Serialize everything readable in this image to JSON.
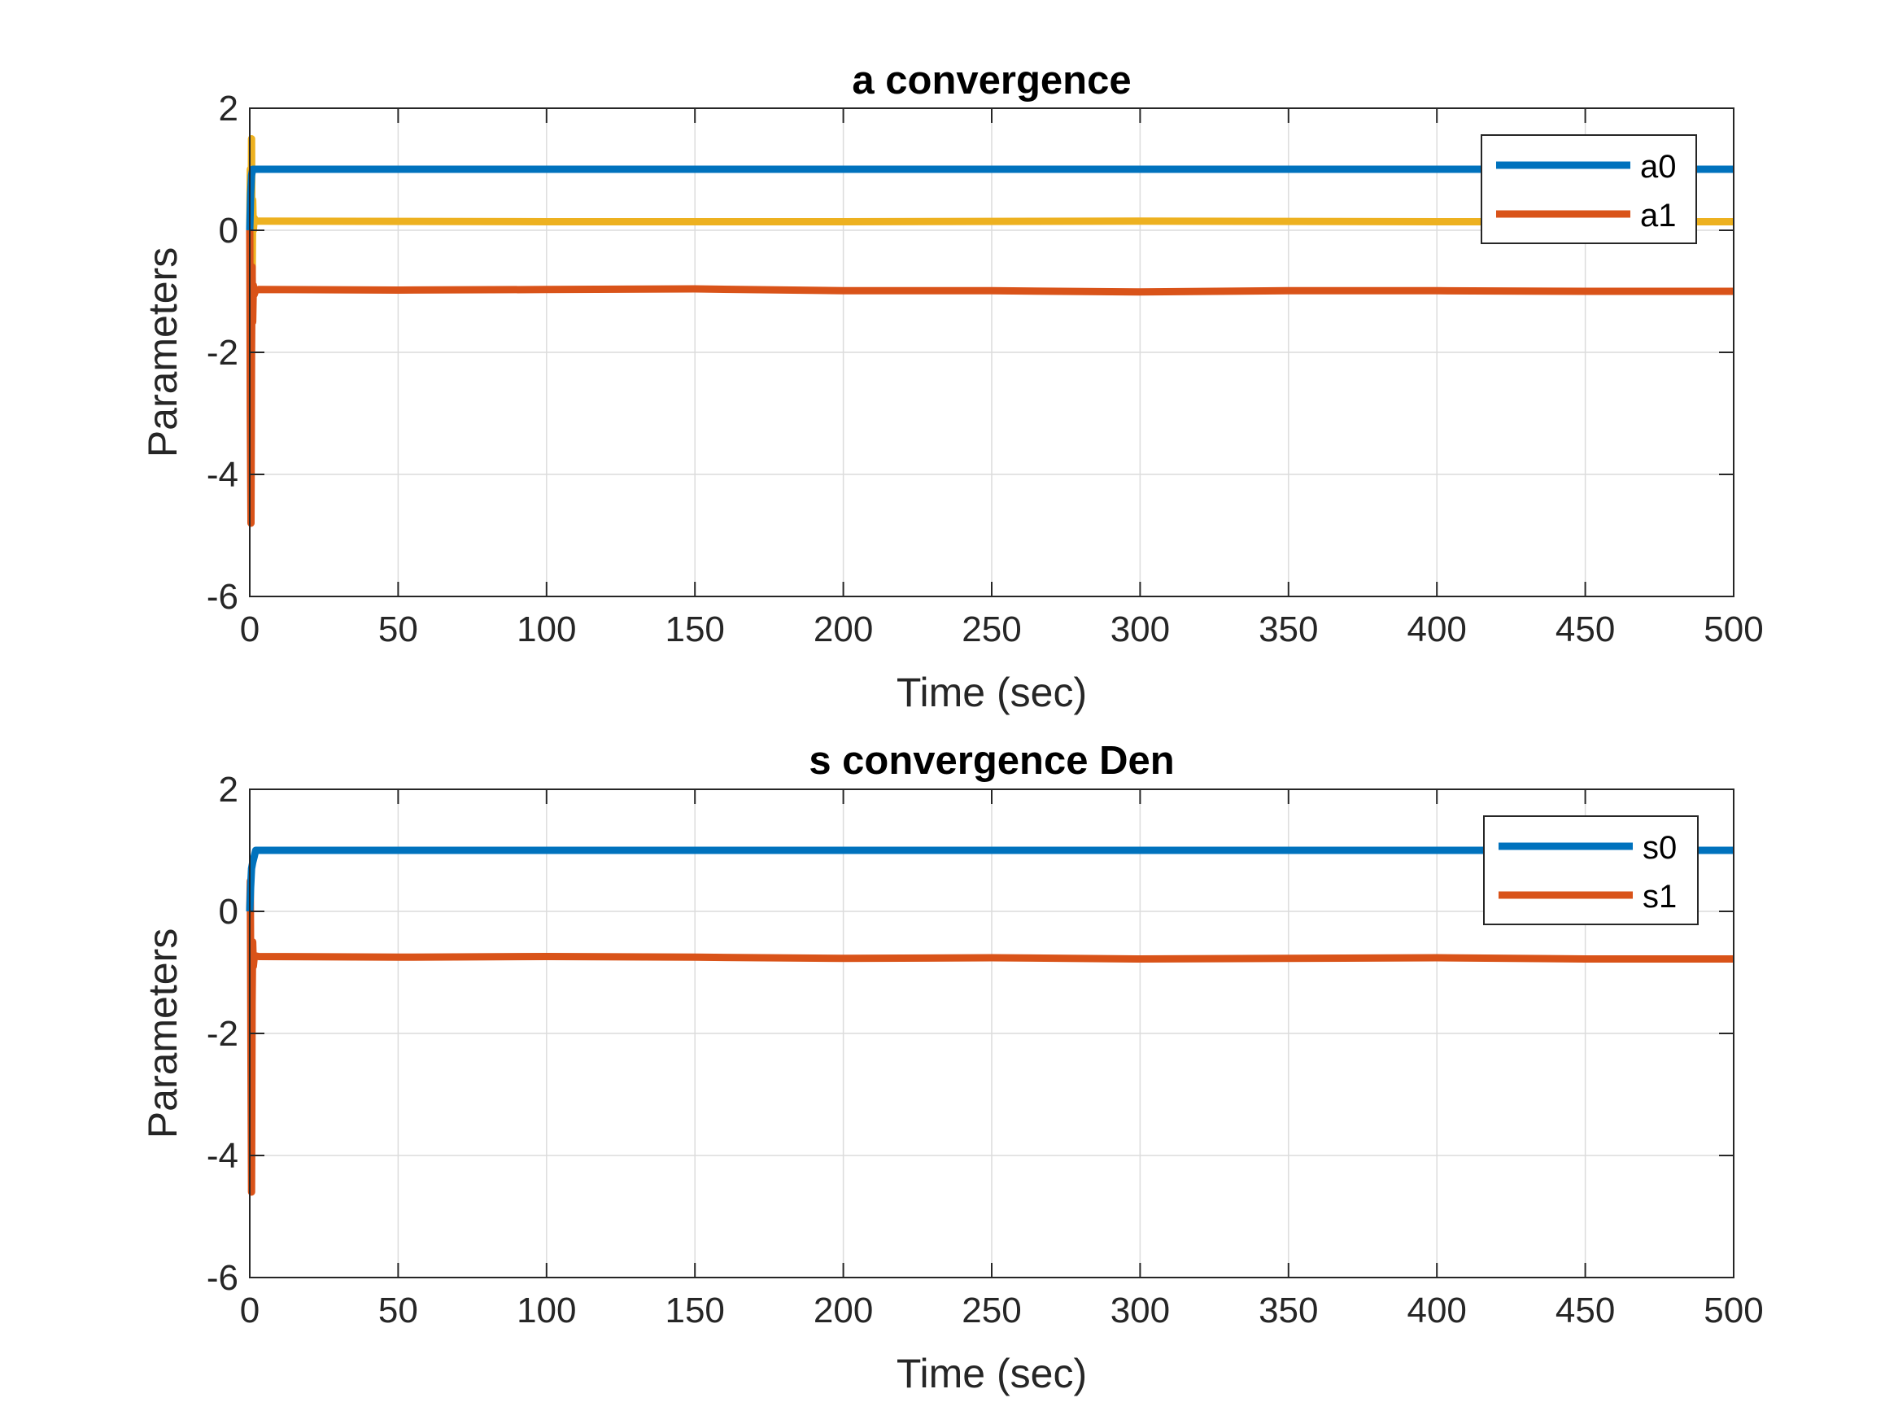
{
  "colors": {
    "series_blue": "#0072BD",
    "series_orange": "#D95319",
    "series_yellow": "#EDB120",
    "grid": "#DCDCDC",
    "axis": "#262626",
    "background": "#FFFFFF"
  },
  "chart_data": [
    {
      "type": "line",
      "title": "a convergence",
      "xlabel": "Time (sec)",
      "ylabel": "Parameters",
      "xlim": [
        0,
        500
      ],
      "ylim": [
        -6,
        2
      ],
      "xticks": [
        0,
        50,
        100,
        150,
        200,
        250,
        300,
        350,
        400,
        450,
        500
      ],
      "yticks": [
        -6,
        -4,
        -2,
        0,
        2
      ],
      "xtick_labels": [
        "0",
        "50",
        "100",
        "150",
        "200",
        "250",
        "300",
        "350",
        "400",
        "450",
        "500"
      ],
      "ytick_labels": [
        "-6",
        "-4",
        "-2",
        "0",
        "2"
      ],
      "grid": true,
      "legend_position": "top-right",
      "legend_entries": [
        "a0",
        "a1"
      ],
      "series": [
        {
          "name": "a0",
          "color": "#0072BD",
          "x": [
            0,
            0.3,
            0.6,
            1,
            1.5,
            2,
            500
          ],
          "y": [
            0,
            0.6,
            0.9,
            1.0,
            1.0,
            1.0,
            1.0
          ]
        },
        {
          "name": "a1",
          "color": "#D95319",
          "x": [
            0,
            0.2,
            0.4,
            0.6,
            0.8,
            1.0,
            1.2,
            1.5,
            2,
            3,
            50,
            100,
            150,
            200,
            250,
            300,
            350,
            400,
            450,
            500
          ],
          "y": [
            0,
            -3.0,
            -4.8,
            -2.0,
            -0.6,
            -1.5,
            -0.9,
            -1.05,
            -0.98,
            -0.97,
            -0.98,
            -0.97,
            -0.96,
            -0.99,
            -0.99,
            -1.01,
            -0.99,
            -0.99,
            -1.0,
            -1.0
          ]
        },
        {
          "color": "#EDB120",
          "x": [
            0,
            0.2,
            0.4,
            0.6,
            0.8,
            1.0,
            1.2,
            1.5,
            2,
            3,
            100,
            200,
            300,
            400,
            500
          ],
          "y": [
            0,
            1.0,
            -0.5,
            1.5,
            -1.0,
            0.5,
            0.0,
            0.2,
            0.15,
            0.15,
            0.14,
            0.14,
            0.15,
            0.14,
            0.14
          ]
        }
      ]
    },
    {
      "type": "line",
      "title": "s convergence Den",
      "xlabel": "Time (sec)",
      "ylabel": "Parameters",
      "xlim": [
        0,
        500
      ],
      "ylim": [
        -6,
        2
      ],
      "xticks": [
        0,
        50,
        100,
        150,
        200,
        250,
        300,
        350,
        400,
        450,
        500
      ],
      "yticks": [
        -6,
        -4,
        -2,
        0,
        2
      ],
      "xtick_labels": [
        "0",
        "50",
        "100",
        "150",
        "200",
        "250",
        "300",
        "350",
        "400",
        "450",
        "500"
      ],
      "ytick_labels": [
        "-6",
        "-4",
        "-2",
        "0",
        "2"
      ],
      "grid": true,
      "legend_position": "top-right",
      "legend_entries": [
        "s0",
        "s1"
      ],
      "series": [
        {
          "name": "s0",
          "color": "#0072BD",
          "x": [
            0,
            0.3,
            0.6,
            1,
            1.5,
            2,
            2.5,
            500
          ],
          "y": [
            0,
            0.4,
            0.7,
            0.8,
            0.9,
            1.0,
            1.0,
            1.0
          ]
        },
        {
          "name": "s1",
          "color": "#D95319",
          "x": [
            0,
            0.2,
            0.4,
            0.6,
            0.8,
            1.0,
            1.2,
            1.5,
            2,
            3,
            50,
            100,
            150,
            200,
            250,
            300,
            350,
            400,
            450,
            500
          ],
          "y": [
            0,
            0.5,
            -2.5,
            -4.6,
            -1.5,
            -0.5,
            -0.9,
            -0.75,
            -0.73,
            -0.74,
            -0.75,
            -0.74,
            -0.75,
            -0.77,
            -0.76,
            -0.78,
            -0.77,
            -0.76,
            -0.78,
            -0.78
          ]
        }
      ]
    }
  ]
}
